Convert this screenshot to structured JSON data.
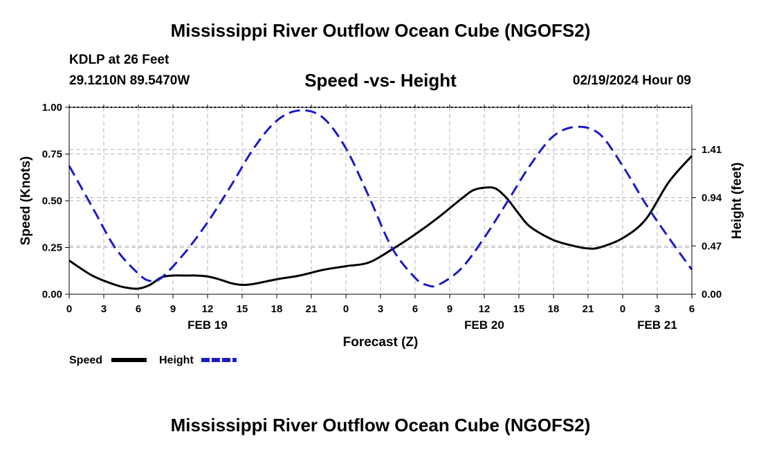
{
  "header": {
    "title": "Mississippi River Outflow Ocean Cube (NGOFS2)",
    "station": "KDLP at 26 Feet",
    "location": "29.1210N  89.5470W",
    "subtitle": "Speed -vs- Height",
    "datetime": "02/19/2024 Hour 09"
  },
  "footer": {
    "title": "Mississippi River Outflow Ocean Cube (NGOFS2)"
  },
  "colors": {
    "speed": "#000000",
    "height": "#1a1ac8",
    "grid": "#b4b4b4"
  },
  "chart_data": {
    "type": "line",
    "xlabel": "Forecast (Z)",
    "ylabel": "Speed (Knots)",
    "y2label": "Height (feet)",
    "x_unit": "hours from Feb 19 00Z",
    "xlim": [
      0,
      54
    ],
    "ylim": [
      0,
      1.0
    ],
    "y2lim": [
      0,
      1.82
    ],
    "x_ticks": [
      0,
      3,
      6,
      9,
      12,
      15,
      18,
      21,
      24,
      27,
      30,
      33,
      36,
      39,
      42,
      45,
      48,
      51,
      54
    ],
    "x_tick_labels": [
      "0",
      "3",
      "6",
      "9",
      "12",
      "15",
      "18",
      "21",
      "0",
      "3",
      "6",
      "9",
      "12",
      "15",
      "18",
      "21",
      "0",
      "3",
      "6"
    ],
    "y_ticks": [
      0,
      0.25,
      0.5,
      0.75,
      1.0
    ],
    "y_tick_labels": [
      "0.00",
      "0.25",
      "0.50",
      "0.75",
      "1.00"
    ],
    "y2_ticks": [
      0,
      0.47,
      0.94,
      1.41
    ],
    "y2_tick_labels": [
      "0.00",
      "0.47",
      "0.94",
      "1.41"
    ],
    "date_labels": [
      {
        "x": 12,
        "label": "FEB 19"
      },
      {
        "x": 36,
        "label": "FEB 20"
      },
      {
        "x": 51,
        "label": "FEB 21"
      }
    ],
    "grid": true,
    "legend_position": "bottom-left",
    "series": [
      {
        "name": "Speed",
        "axis": "left",
        "style": "solid",
        "x": [
          0,
          2,
          4,
          5,
          6,
          7,
          8,
          9,
          10,
          11,
          12,
          13,
          14,
          15,
          16,
          18,
          20,
          22,
          24,
          26,
          28,
          30,
          32,
          34,
          35,
          36,
          37,
          38,
          39,
          40,
          42,
          44,
          45,
          46,
          48,
          50,
          52,
          54
        ],
        "values": [
          0.18,
          0.1,
          0.05,
          0.035,
          0.03,
          0.05,
          0.09,
          0.1,
          0.1,
          0.1,
          0.095,
          0.08,
          0.06,
          0.05,
          0.055,
          0.08,
          0.1,
          0.13,
          0.15,
          0.17,
          0.24,
          0.32,
          0.41,
          0.51,
          0.555,
          0.57,
          0.565,
          0.51,
          0.43,
          0.36,
          0.29,
          0.255,
          0.245,
          0.25,
          0.3,
          0.4,
          0.6,
          0.74
        ]
      },
      {
        "name": "Height",
        "axis": "right",
        "style": "dashed",
        "x": [
          0,
          2,
          4,
          6,
          7,
          8,
          10,
          12,
          14,
          16,
          18,
          20,
          22,
          24,
          26,
          28,
          30,
          31,
          32,
          34,
          36,
          38,
          40,
          42,
          44,
          46,
          48,
          50,
          52,
          54
        ],
        "values": [
          1.25,
          0.85,
          0.45,
          0.2,
          0.13,
          0.16,
          0.4,
          0.7,
          1.05,
          1.42,
          1.69,
          1.79,
          1.72,
          1.42,
          0.95,
          0.45,
          0.16,
          0.09,
          0.09,
          0.25,
          0.55,
          0.9,
          1.26,
          1.54,
          1.63,
          1.56,
          1.25,
          0.88,
          0.55,
          0.24
        ]
      }
    ]
  }
}
